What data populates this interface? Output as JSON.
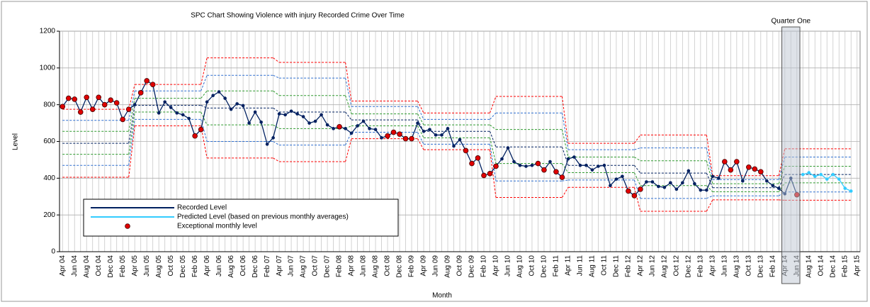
{
  "chart_data": {
    "type": "line",
    "title": "SPC Chart Showing Violence with injury Recorded Crime Over Time",
    "x_label": "Month",
    "y_label": "Level",
    "ylim": [
      0,
      1200
    ],
    "yticks": [
      0,
      200,
      400,
      600,
      800,
      1000,
      1200
    ],
    "grid": true,
    "legend": "lower left",
    "categories": [
      "Apr 04",
      null,
      "Jun 04",
      null,
      "Aug 04",
      null,
      "Oct 04",
      null,
      "Dec 04",
      null,
      "Feb 05",
      null,
      "Apr 05",
      null,
      "Jun 05",
      null,
      "Aug 05",
      null,
      "Oct 05",
      null,
      "Dec 05",
      null,
      "Feb 06",
      null,
      "Apr 06",
      null,
      "Jun 06",
      null,
      "Aug 06",
      null,
      "Oct 06",
      null,
      "Dec 06",
      null,
      "Feb 07",
      null,
      "Apr 07",
      null,
      "Jun 07",
      null,
      "Aug 07",
      null,
      "Oct 07",
      null,
      "Dec 07",
      null,
      "Feb 08",
      null,
      "Apr 08",
      null,
      "Jun 08",
      null,
      "Aug 08",
      null,
      "Oct 08",
      null,
      "Dec 08",
      null,
      "Feb 09",
      null,
      "Apr 09",
      null,
      "Jun 09",
      null,
      "Aug 09",
      null,
      "Oct 09",
      null,
      "Dec 09",
      null,
      "Feb 10",
      null,
      "Apr 10",
      null,
      "Jun 10",
      null,
      "Aug 10",
      null,
      "Oct 10",
      null,
      "Dec 10",
      null,
      "Feb 11",
      null,
      "Apr 11",
      null,
      "Jun 11",
      null,
      "Aug 11",
      null,
      "Oct 11",
      null,
      "Dec 11",
      null,
      "Feb 12",
      null,
      "Apr 12",
      null,
      "Jun 12",
      null,
      "Aug 12",
      null,
      "Oct 12",
      null,
      "Dec 12",
      null,
      "Feb 13",
      null,
      "Apr 13",
      null,
      "Jun 13",
      null,
      "Aug 13",
      null,
      "Oct 13",
      null,
      "Dec 13",
      null,
      "Feb 14",
      null,
      "Apr 14",
      null,
      "Jun 14",
      null,
      "Aug 14",
      null,
      "Oct 14",
      null,
      "Dec 14",
      null,
      "Feb 15",
      null,
      "Apr 15"
    ],
    "series": [
      {
        "name": "Recorded Level",
        "color": "#002060",
        "marker": "dot",
        "values": [
          790,
          835,
          830,
          760,
          840,
          775,
          840,
          800,
          825,
          810,
          720,
          775,
          800,
          865,
          930,
          910,
          755,
          815,
          785,
          755,
          745,
          725,
          630,
          665,
          815,
          850,
          870,
          835,
          775,
          805,
          795,
          700,
          760,
          705,
          585,
          620,
          750,
          745,
          765,
          750,
          735,
          700,
          710,
          745,
          690,
          670,
          680,
          670,
          645,
          685,
          710,
          670,
          665,
          620,
          630,
          650,
          640,
          615,
          615,
          700,
          655,
          665,
          635,
          635,
          670,
          575,
          610,
          550,
          480,
          510,
          415,
          425,
          465,
          505,
          565,
          490,
          470,
          465,
          470,
          480,
          445,
          490,
          435,
          405,
          505,
          515,
          470,
          470,
          445,
          465,
          470,
          360,
          395,
          410,
          330,
          305,
          340,
          380,
          380,
          355,
          350,
          375,
          340,
          375,
          440,
          370,
          335,
          335,
          410,
          400,
          490,
          445,
          490,
          385,
          460,
          450,
          435,
          385,
          360,
          345,
          315,
          400,
          310,
          null,
          null,
          null,
          null,
          null,
          null,
          null,
          null,
          null,
          null
        ]
      },
      {
        "name": "Predicted Level (based on previous monthly averages)",
        "color": "#33ccff",
        "marker": "dot",
        "values": [
          null,
          null,
          null,
          null,
          null,
          null,
          null,
          null,
          null,
          null,
          null,
          null,
          null,
          null,
          null,
          null,
          null,
          null,
          null,
          null,
          null,
          null,
          null,
          null,
          null,
          null,
          null,
          null,
          null,
          null,
          null,
          null,
          null,
          null,
          null,
          null,
          null,
          null,
          null,
          null,
          null,
          null,
          null,
          null,
          null,
          null,
          null,
          null,
          null,
          null,
          null,
          null,
          null,
          null,
          null,
          null,
          null,
          null,
          null,
          null,
          null,
          null,
          null,
          null,
          null,
          null,
          null,
          null,
          null,
          null,
          null,
          null,
          null,
          null,
          null,
          null,
          null,
          null,
          null,
          null,
          null,
          null,
          null,
          null,
          null,
          null,
          null,
          null,
          null,
          null,
          null,
          null,
          null,
          null,
          null,
          null,
          null,
          null,
          null,
          null,
          null,
          null,
          null,
          null,
          null,
          null,
          null,
          null,
          null,
          null,
          null,
          null,
          null,
          null,
          null,
          null,
          null,
          null,
          null,
          null,
          null,
          null,
          null,
          420,
          430,
          410,
          420,
          395,
          420,
          395,
          345,
          330,
          null
        ]
      },
      {
        "name": "Exceptional monthly level",
        "color": "#e00000",
        "marker": "big-dot",
        "values": [
          790,
          835,
          830,
          760,
          840,
          775,
          840,
          800,
          825,
          810,
          720,
          775,
          null,
          865,
          930,
          910,
          null,
          null,
          null,
          null,
          null,
          null,
          630,
          665,
          null,
          null,
          null,
          null,
          null,
          null,
          null,
          null,
          null,
          null,
          null,
          null,
          null,
          null,
          null,
          null,
          null,
          null,
          null,
          null,
          null,
          null,
          680,
          null,
          null,
          null,
          null,
          null,
          null,
          null,
          630,
          650,
          640,
          615,
          615,
          null,
          null,
          null,
          null,
          null,
          null,
          null,
          null,
          550,
          480,
          510,
          415,
          425,
          465,
          null,
          null,
          null,
          null,
          null,
          null,
          480,
          445,
          null,
          435,
          405,
          null,
          null,
          null,
          null,
          null,
          null,
          null,
          null,
          null,
          null,
          330,
          305,
          340,
          null,
          null,
          null,
          null,
          null,
          null,
          null,
          null,
          null,
          null,
          null,
          null,
          null,
          490,
          445,
          490,
          null,
          460,
          450,
          435,
          null,
          null,
          null,
          null,
          null,
          310,
          null,
          null,
          null,
          null,
          null,
          null,
          null,
          null,
          null,
          null
        ]
      }
    ],
    "limit_colors": [
      "#ff0000",
      "#2e6fd0",
      "#2e9a2e",
      "#002060",
      "#2e9a2e",
      "#2e6fd0",
      "#ff0000"
    ],
    "control_limits": [
      {
        "from": 0,
        "to": 11,
        "levels": [
          775,
          715,
          655,
          590,
          530,
          470,
          405
        ]
      },
      {
        "from": 12,
        "to": 23,
        "levels": [
          910,
          875,
          835,
          797,
          760,
          720,
          685
        ]
      },
      {
        "from": 24,
        "to": 35,
        "levels": [
          1055,
          960,
          875,
          782,
          690,
          600,
          510
        ]
      },
      {
        "from": 36,
        "to": 47,
        "levels": [
          1030,
          945,
          850,
          760,
          670,
          580,
          490
        ]
      },
      {
        "from": 48,
        "to": 59,
        "levels": [
          820,
          790,
          750,
          717,
          685,
          650,
          615
        ]
      },
      {
        "from": 60,
        "to": 71,
        "levels": [
          755,
          720,
          690,
          655,
          620,
          585,
          555
        ]
      },
      {
        "from": 72,
        "to": 83,
        "levels": [
          845,
          755,
          665,
          570,
          480,
          385,
          295
        ]
      },
      {
        "from": 84,
        "to": 95,
        "levels": [
          590,
          555,
          515,
          470,
          430,
          390,
          350
        ]
      },
      {
        "from": 96,
        "to": 107,
        "levels": [
          635,
          565,
          495,
          428,
          360,
          290,
          220
        ]
      },
      {
        "from": 108,
        "to": 119,
        "levels": [
          414,
          392,
          370,
          348,
          326,
          304,
          282
        ]
      },
      {
        "from": 120,
        "to": 131,
        "levels": [
          560,
          515,
          465,
          420,
          375,
          325,
          280
        ]
      }
    ],
    "annotations": [
      {
        "label": "Quarter One",
        "from": 120,
        "to": 122
      }
    ]
  }
}
